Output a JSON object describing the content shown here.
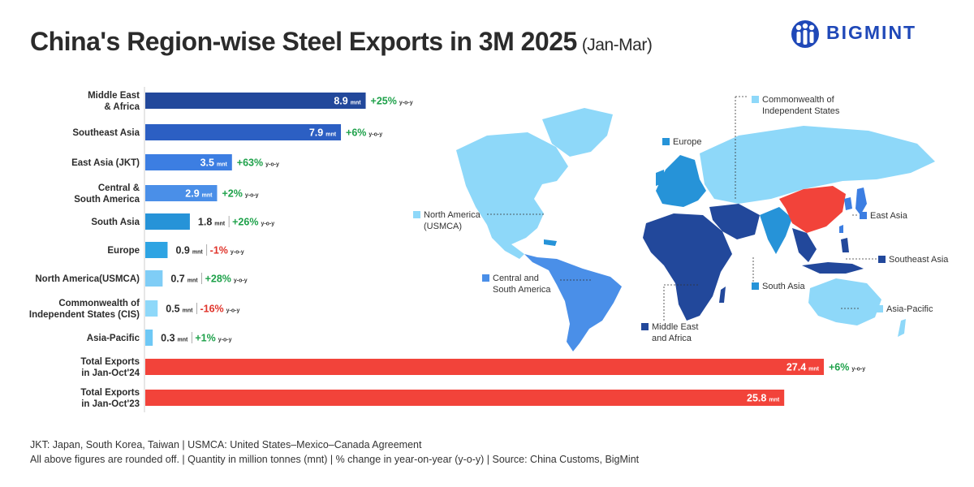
{
  "header": {
    "title": "China's Region-wise Steel Exports in 3M 2025",
    "subtitle": "(Jan-Mar)",
    "brand": "BIGMINT"
  },
  "chart_data": {
    "type": "bar",
    "orientation": "horizontal",
    "title": "China's Region-wise Steel Exports in 3M 2025",
    "subtitle": "(Jan-Mar)",
    "unit": "mnt",
    "change_suffix": "y-o-y",
    "xlim": [
      0,
      30
    ],
    "grid": false,
    "categories": [
      [
        "Middle East",
        "& Africa"
      ],
      [
        "Southeast Asia"
      ],
      [
        "East Asia (JKT)"
      ],
      [
        "Central &",
        "South America"
      ],
      [
        "South Asia"
      ],
      [
        "Europe"
      ],
      [
        "North America(USMCA)"
      ],
      [
        "Commonwealth of",
        "Independent States (CIS)"
      ],
      [
        "Asia-Pacific"
      ],
      [
        "Total Exports",
        "in Jan-Oct'24"
      ],
      [
        "Total Exports",
        "in Jan-Oct'23"
      ]
    ],
    "values": [
      8.9,
      7.9,
      3.5,
      2.9,
      1.8,
      0.9,
      0.7,
      0.5,
      0.3,
      27.4,
      25.8
    ],
    "value_labels": [
      "8.9",
      "7.9",
      "3.5",
      "2.9",
      "1.8",
      "0.9",
      "0.7",
      "0.5",
      "0.3",
      "27.4",
      "25.8"
    ],
    "changes": [
      "+25%",
      "+6%",
      "+63%",
      "+2%",
      "+26%",
      "-1%",
      "+28%",
      "-16%",
      "+1%",
      "+6%",
      ""
    ],
    "colors": [
      "#22489b",
      "#2c5fc3",
      "#3c7ee2",
      "#4a8fe8",
      "#2693d8",
      "#2ea4e3",
      "#7fcdf6",
      "#8ed8f9",
      "#6ec8f5",
      "#f2433a",
      "#f2433a"
    ],
    "change_colors": {
      "positive": "#1ea14a",
      "negative": "#e0342b"
    }
  },
  "map": {
    "labels": [
      {
        "name": "Commonwealth of Independent States",
        "lines": [
          "Commonwealth of",
          "Independent States"
        ],
        "color": "#8ed8f9"
      },
      {
        "name": "Europe",
        "lines": [
          "Europe"
        ],
        "color": "#2693d8"
      },
      {
        "name": "North America (USMCA)",
        "lines": [
          "North America",
          "(USMCA)"
        ],
        "color": "#8ed8f9"
      },
      {
        "name": "East Asia",
        "lines": [
          "East Asia"
        ],
        "color": "#3c7ee2"
      },
      {
        "name": "Southeast Asia",
        "lines": [
          "Southeast Asia"
        ],
        "color": "#22489b"
      },
      {
        "name": "Central and South America",
        "lines": [
          "Central and",
          "South America"
        ],
        "color": "#4a8fe8"
      },
      {
        "name": "South Asia",
        "lines": [
          "South Asia"
        ],
        "color": "#2693d8"
      },
      {
        "name": "Asia-Pacific",
        "lines": [
          "Asia-Pacific"
        ],
        "color": "#8ed8f9"
      },
      {
        "name": "Middle East and Africa",
        "lines": [
          "Middle East",
          "and Africa"
        ],
        "color": "#22489b"
      }
    ],
    "china_color": "#f2433a"
  },
  "footer": {
    "line1": "JKT: Japan, South Korea, Taiwan | USMCA: United States–Mexico–Canada Agreement",
    "line2": "All above figures are rounded off. | Quantity in million tonnes (mnt) | % change in year-on-year (y-o-y) | Source: China Customs, BigMint"
  }
}
